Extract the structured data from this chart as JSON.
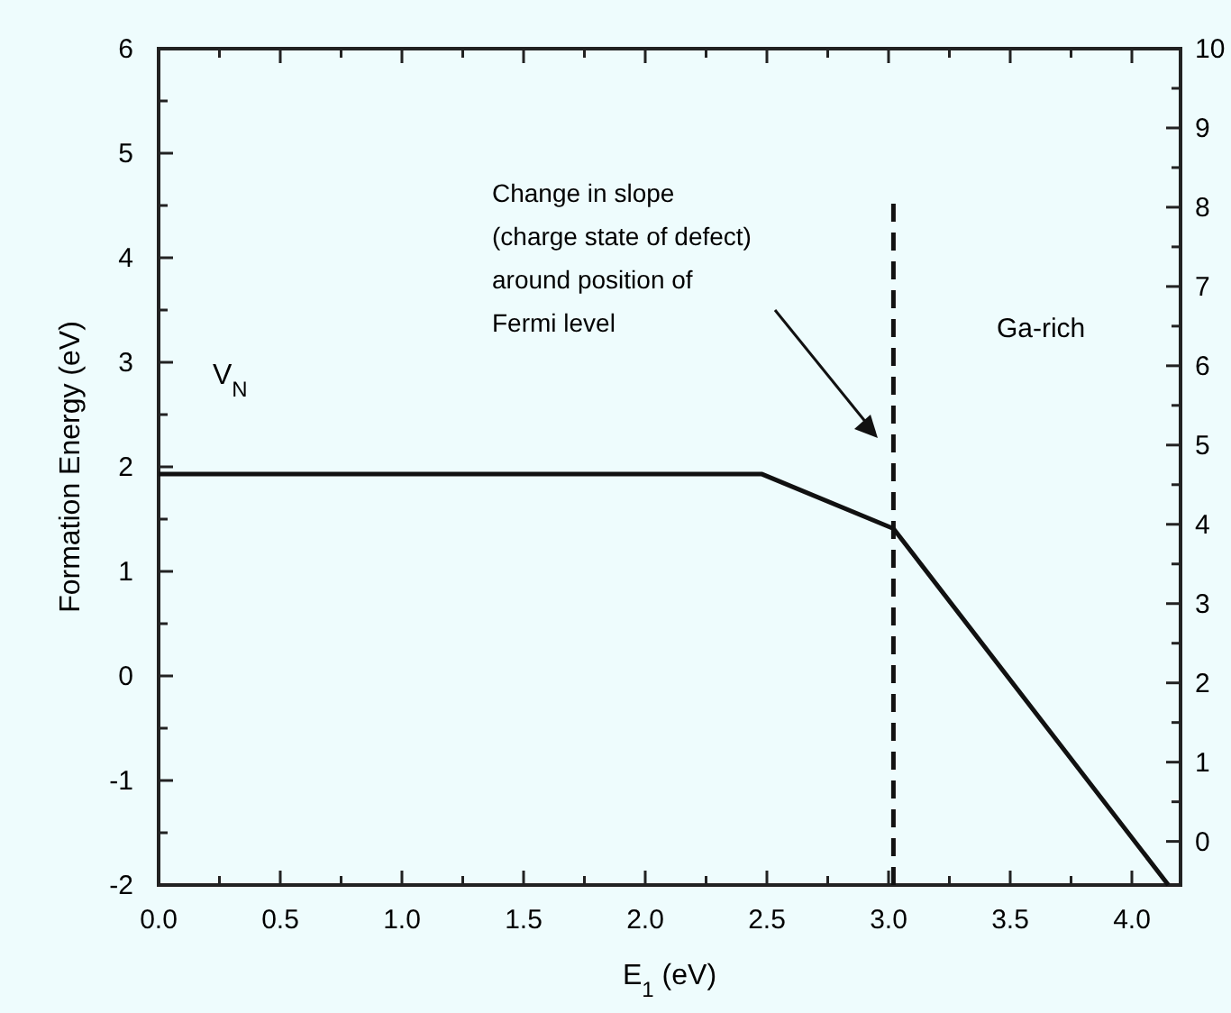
{
  "chart_data": {
    "type": "line",
    "xlabel": "E$_{1}$ (eV)",
    "ylabel": "Formation Energy (eV)",
    "xlim": [
      0,
      4.2
    ],
    "ylim": [
      -2,
      6
    ],
    "y2lim": [
      -0.55,
      10
    ],
    "xticks": [
      {
        "value": 0,
        "label": "0.0"
      },
      {
        "value": 0.25,
        "label": null
      },
      {
        "value": 0.5,
        "label": "0.5"
      },
      {
        "value": 0.75,
        "label": null
      },
      {
        "value": 1,
        "label": "1.0"
      },
      {
        "value": 1.25,
        "label": null
      },
      {
        "value": 1.5,
        "label": "1.5"
      },
      {
        "value": 1.75,
        "label": null
      },
      {
        "value": 2,
        "label": "2.0"
      },
      {
        "value": 2.25,
        "label": null
      },
      {
        "value": 2.5,
        "label": "2.5"
      },
      {
        "value": 2.75,
        "label": null
      },
      {
        "value": 3,
        "label": "3.0"
      },
      {
        "value": 3.25,
        "label": null
      },
      {
        "value": 3.5,
        "label": "3.5"
      },
      {
        "value": 3.75,
        "label": null
      },
      {
        "value": 4,
        "label": "4.0"
      }
    ],
    "yticks": [
      -2,
      {
        "value": -1.5,
        "label": null
      },
      -1,
      {
        "value": -0.5,
        "label": null
      },
      0,
      {
        "value": 0.5,
        "label": null
      },
      1,
      {
        "value": 1.5,
        "label": null
      },
      2,
      {
        "value": 2.5,
        "label": null
      },
      3,
      {
        "value": 3.5,
        "label": null
      },
      4,
      {
        "value": 4.5,
        "label": null
      },
      5,
      {
        "value": 5.5,
        "label": null
      },
      6
    ],
    "y2ticks": [
      0,
      {
        "value": 0.5,
        "label": null
      },
      1,
      {
        "value": 1.5,
        "label": null
      },
      2,
      {
        "value": 2.5,
        "label": null
      },
      3,
      {
        "value": 3.5,
        "label": null
      },
      4,
      {
        "value": 4.5,
        "label": null
      },
      5,
      {
        "value": 5.5,
        "label": null
      },
      6,
      {
        "value": 6.5,
        "label": null
      },
      7,
      {
        "value": 7.5,
        "label": null
      },
      8,
      {
        "value": 8.5,
        "label": null
      },
      9,
      {
        "value": 9.5,
        "label": null
      },
      10
    ],
    "series": [
      {
        "name": "V$_{N}$",
        "color": "#111111",
        "x": [
          0,
          2.48,
          3.02,
          4.15
        ],
        "values": [
          1.93,
          1.93,
          1.41,
          -2
        ]
      },
      {
        "color": "#111111",
        "line_style": "dashed",
        "x": [
          3.02,
          3.02
        ],
        "values": [
          -2,
          4.52
        ]
      }
    ],
    "annotations": [
      "Change in slope\n(charge state of defect)\naround position of\nFermi level",
      "Ga-rich"
    ],
    "grid": false
  }
}
